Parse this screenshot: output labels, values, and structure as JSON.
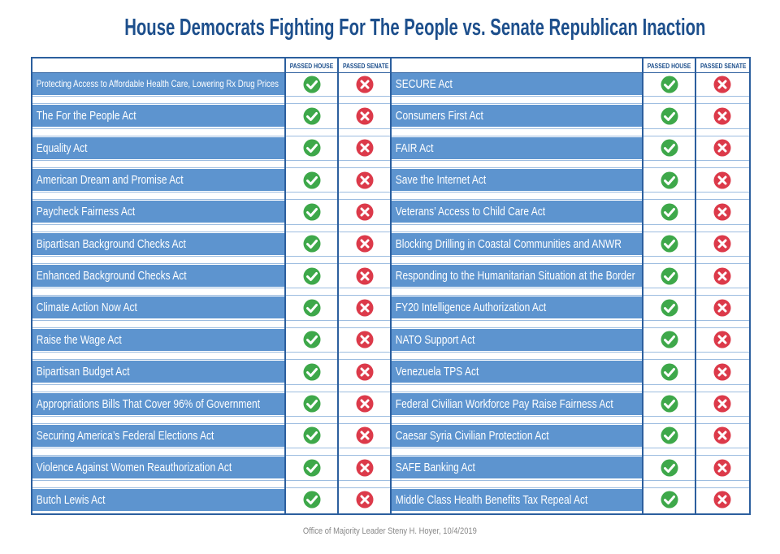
{
  "header": {
    "title": "House Democrats Fighting For The People vs. Senate Republican Inaction"
  },
  "columns": [
    "PASSED HOUSE",
    "PASSED SENATE"
  ],
  "tables": [
    {
      "rows": [
        "Protecting Access to Affordable Health Care, Lowering Rx Drug Prices",
        "The For the People Act",
        "Equality Act",
        "American Dream and Promise Act",
        "Paycheck Fairness Act",
        "Bipartisan Background Checks Act",
        "Enhanced Background Checks Act",
        "Climate Action Now Act",
        "Raise the Wage Act",
        "Bipartisan Budget Act",
        "Appropriations Bills That Cover 96% of Government",
        "Securing America’s Federal Elections Act",
        "Violence Against Women Reauthorization Act",
        "Butch Lewis Act"
      ]
    },
    {
      "rows": [
        "SECURE Act",
        "Consumers First Act",
        "FAIR Act",
        "Save the Internet Act",
        "Veterans’ Access to Child Care Act",
        "Blocking Drilling in Coastal Communities and ANWR",
        "Responding to the Humanitarian Situation at the Border",
        "FY20 Intelligence Authorization Act",
        "NATO Support Act",
        "Venezuela TPS Act",
        "Federal Civilian Workforce Pay Raise Fairness Act",
        "Caesar Syria Civilian Protection Act",
        "SAFE Banking Act",
        "Middle Class Health Benefits Tax Repeal Act"
      ]
    }
  ],
  "footer": "Office of Majority Leader Steny H. Hoyer, 10/4/2019"
}
